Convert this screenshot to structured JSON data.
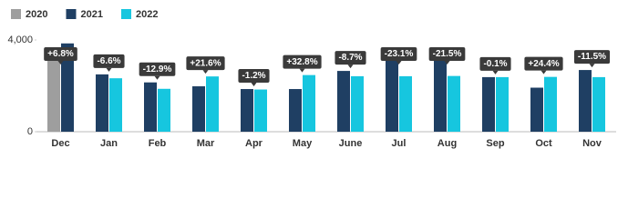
{
  "chart_data": {
    "type": "bar",
    "categories": [
      "Dec",
      "Jan",
      "Feb",
      "Mar",
      "Apr",
      "May",
      "June",
      "Jul",
      "Aug",
      "Sep",
      "Oct",
      "Nov"
    ],
    "series": [
      {
        "name": "2020",
        "color": "#9e9e9e",
        "values": [
          3600,
          null,
          null,
          null,
          null,
          null,
          null,
          null,
          null,
          null,
          null,
          null
        ]
      },
      {
        "name": "2021",
        "color": "#1f3f63",
        "values": [
          3850,
          2500,
          2150,
          1980,
          1860,
          1860,
          2650,
          3150,
          3100,
          2380,
          1920,
          2690
        ]
      },
      {
        "name": "2022",
        "color": "#16c6df",
        "values": [
          null,
          2330,
          1870,
          2410,
          1840,
          2470,
          2420,
          2420,
          2430,
          2380,
          2390,
          2380
        ]
      }
    ],
    "annotations": [
      "+6.8%",
      "-6.6%",
      "-12.9%",
      "+21.6%",
      "-1.2%",
      "+32.8%",
      "-8.7%",
      "-23.1%",
      "-21.5%",
      "-0.1%",
      "+24.4%",
      "-11.5%"
    ],
    "ylim": [
      0,
      4000
    ],
    "yticks": [
      0,
      {
        "value": 4000,
        "label": "4,000"
      }
    ],
    "grid": false
  }
}
